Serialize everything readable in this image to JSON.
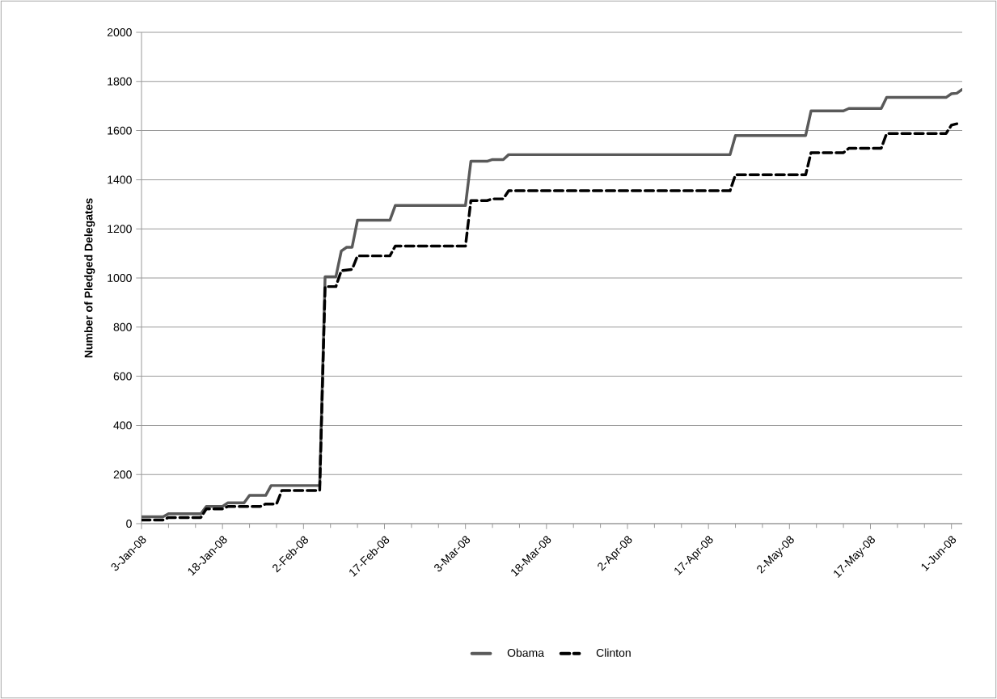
{
  "chart_data": {
    "type": "line",
    "ylabel": "Number of Pledged Delegates",
    "xlim": [
      "2008-01-03",
      "2008-06-03"
    ],
    "ylim": [
      0,
      2000
    ],
    "yticks": [
      0,
      200,
      400,
      600,
      800,
      1000,
      1200,
      1400,
      1600,
      1800,
      2000
    ],
    "xticks": [
      {
        "value": "2008-01-03",
        "label": "3-Jan-08"
      },
      {
        "value": "2008-01-18",
        "label": "18-Jan-08"
      },
      {
        "value": "2008-02-02",
        "label": "2-Feb-08"
      },
      {
        "value": "2008-02-17",
        "label": "17-Feb-08"
      },
      {
        "value": "2008-03-03",
        "label": "3-Mar-08"
      },
      {
        "value": "2008-03-18",
        "label": "18-Mar-08"
      },
      {
        "value": "2008-04-02",
        "label": "2-Apr-08"
      },
      {
        "value": "2008-04-17",
        "label": "17-Apr-08"
      },
      {
        "value": "2008-05-02",
        "label": "2-May-08"
      },
      {
        "value": "2008-05-17",
        "label": "17-May-08"
      },
      {
        "value": "2008-06-01",
        "label": "1-Jun-08"
      }
    ],
    "grid": "y",
    "legend": "bottom",
    "series": [
      {
        "name": "Obama",
        "color": "#595959",
        "line_style": "solid",
        "x": [
          "2008-01-03",
          "2008-01-07",
          "2008-01-08",
          "2008-01-14",
          "2008-01-15",
          "2008-01-18",
          "2008-01-19",
          "2008-01-22",
          "2008-01-23",
          "2008-01-26",
          "2008-01-27",
          "2008-02-05",
          "2008-02-06",
          "2008-02-08",
          "2008-02-09",
          "2008-02-10",
          "2008-02-11",
          "2008-02-12",
          "2008-02-18",
          "2008-02-19",
          "2008-03-03",
          "2008-03-04",
          "2008-03-07",
          "2008-03-08",
          "2008-03-10",
          "2008-03-11",
          "2008-04-21",
          "2008-04-22",
          "2008-05-05",
          "2008-05-06",
          "2008-05-12",
          "2008-05-13",
          "2008-05-19",
          "2008-05-20",
          "2008-05-31",
          "2008-06-01",
          "2008-06-02",
          "2008-06-03"
        ],
        "values": [
          28,
          28,
          40,
          40,
          70,
          70,
          85,
          85,
          115,
          115,
          155,
          155,
          1005,
          1005,
          1110,
          1125,
          1125,
          1235,
          1235,
          1295,
          1295,
          1475,
          1475,
          1482,
          1482,
          1502,
          1502,
          1580,
          1580,
          1680,
          1680,
          1690,
          1690,
          1735,
          1735,
          1750,
          1752,
          1768
        ]
      },
      {
        "name": "Clinton",
        "color": "#000000",
        "line_style": "dashed",
        "x": [
          "2008-01-03",
          "2008-01-07",
          "2008-01-08",
          "2008-01-14",
          "2008-01-15",
          "2008-01-18",
          "2008-01-19",
          "2008-01-25",
          "2008-01-26",
          "2008-01-28",
          "2008-01-29",
          "2008-02-05",
          "2008-02-06",
          "2008-02-08",
          "2008-02-09",
          "2008-02-11",
          "2008-02-12",
          "2008-02-18",
          "2008-02-19",
          "2008-03-03",
          "2008-03-04",
          "2008-03-07",
          "2008-03-08",
          "2008-03-10",
          "2008-03-11",
          "2008-04-21",
          "2008-04-22",
          "2008-05-05",
          "2008-05-06",
          "2008-05-12",
          "2008-05-13",
          "2008-05-19",
          "2008-05-20",
          "2008-05-31",
          "2008-06-01",
          "2008-06-02"
        ],
        "values": [
          15,
          15,
          25,
          25,
          60,
          60,
          70,
          70,
          80,
          80,
          135,
          135,
          965,
          965,
          1030,
          1035,
          1090,
          1090,
          1130,
          1130,
          1315,
          1315,
          1322,
          1322,
          1355,
          1355,
          1420,
          1420,
          1510,
          1510,
          1528,
          1528,
          1588,
          1588,
          1622,
          1628
        ]
      }
    ]
  }
}
